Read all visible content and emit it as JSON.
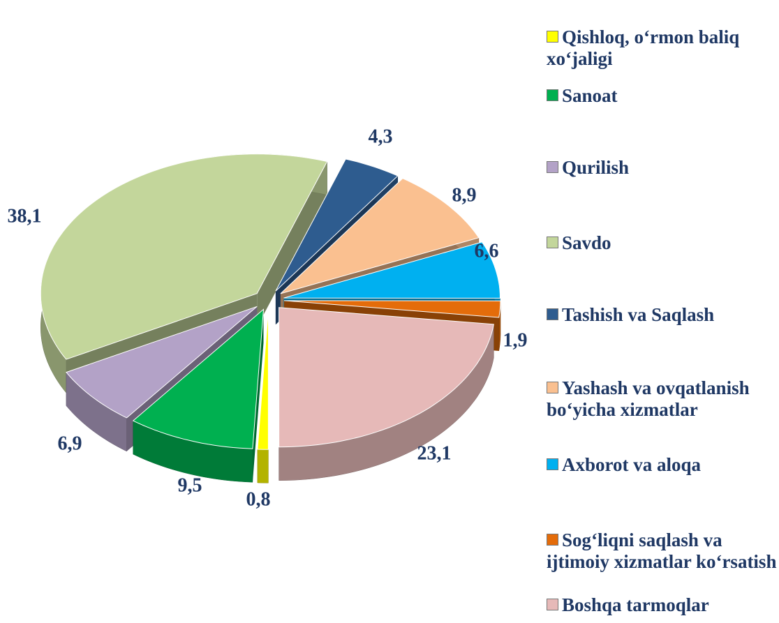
{
  "chart_data": {
    "type": "pie",
    "categories": [
      "Qishloq, o‘rmon baliq xo‘jaligi",
      "Sanoat",
      "Qurilish",
      "Savdo",
      "Tashish va Saqlash",
      "Yashash va ovqatlanish bo‘yicha xizmatlar",
      "Axborot va aloqa",
      "Sog‘liqni saqlash va ijtimoiy xizmatlar ko‘rsatish",
      "Boshqa tarmoqlar"
    ],
    "values": [
      0.8,
      9.5,
      6.9,
      38.1,
      4.3,
      8.9,
      6.6,
      1.9,
      23.1
    ],
    "value_labels": [
      "0,8",
      "9,5",
      "6,9",
      "38,1",
      "4,3",
      "8,9",
      "6,6",
      "1,9",
      "23,1"
    ],
    "colors": [
      "#ffff00",
      "#00b050",
      "#b3a2c7",
      "#c3d69b",
      "#2e5c8f",
      "#fac090",
      "#00b0f0",
      "#e46c0a",
      "#e6b9b8"
    ],
    "legend": "right"
  }
}
